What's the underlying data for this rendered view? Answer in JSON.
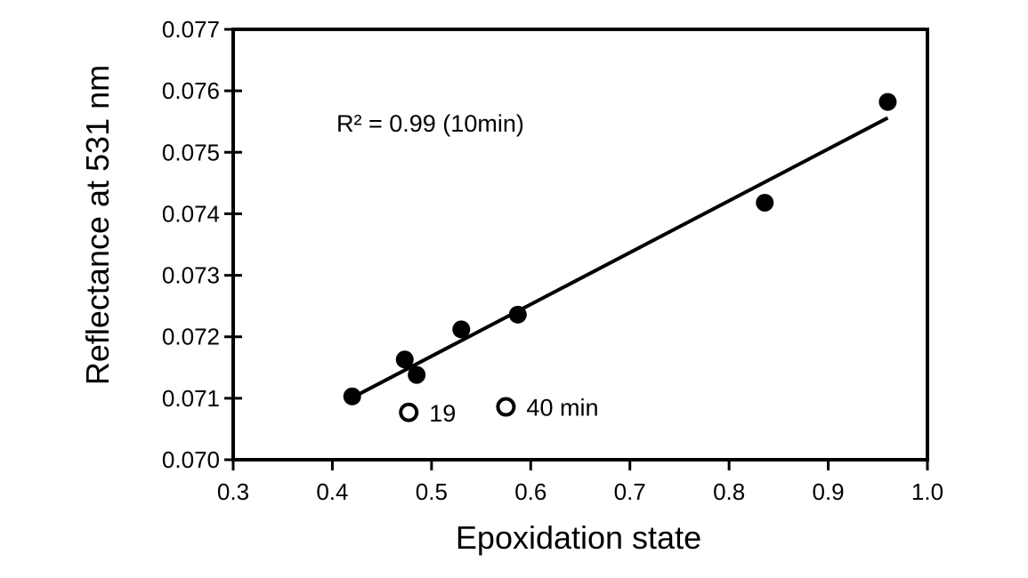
{
  "chart_data": {
    "type": "scatter",
    "title": "",
    "xlabel": "Epoxidation state",
    "ylabel": "Reflectance at 531 nm",
    "xlim": [
      0.3,
      1.0
    ],
    "ylim": [
      0.07,
      0.077
    ],
    "xticks": [
      "0.3",
      "0.4",
      "0.5",
      "0.6",
      "0.7",
      "0.8",
      "0.9",
      "1.0"
    ],
    "yticks": [
      "0.070",
      "0.071",
      "0.072",
      "0.073",
      "0.074",
      "0.075",
      "0.076",
      "0.077"
    ],
    "grid": false,
    "series": [
      {
        "name": "10 min",
        "marker": "filled-circle",
        "x": [
          0.42,
          0.473,
          0.485,
          0.53,
          0.587,
          0.836,
          0.96
        ],
        "y": [
          0.07103,
          0.07163,
          0.07138,
          0.07212,
          0.07236,
          0.07418,
          0.07582
        ]
      },
      {
        "name": "19 and 40 min",
        "marker": "open-circle",
        "x": [
          0.477,
          0.575
        ],
        "y": [
          0.07077,
          0.07086
        ],
        "labels": [
          "19",
          "40 min"
        ]
      }
    ],
    "fit_line": {
      "x": [
        0.42,
        0.96
      ],
      "y": [
        0.07101,
        0.07556
      ]
    },
    "annotation": "R² = 0.99 (10min)"
  }
}
